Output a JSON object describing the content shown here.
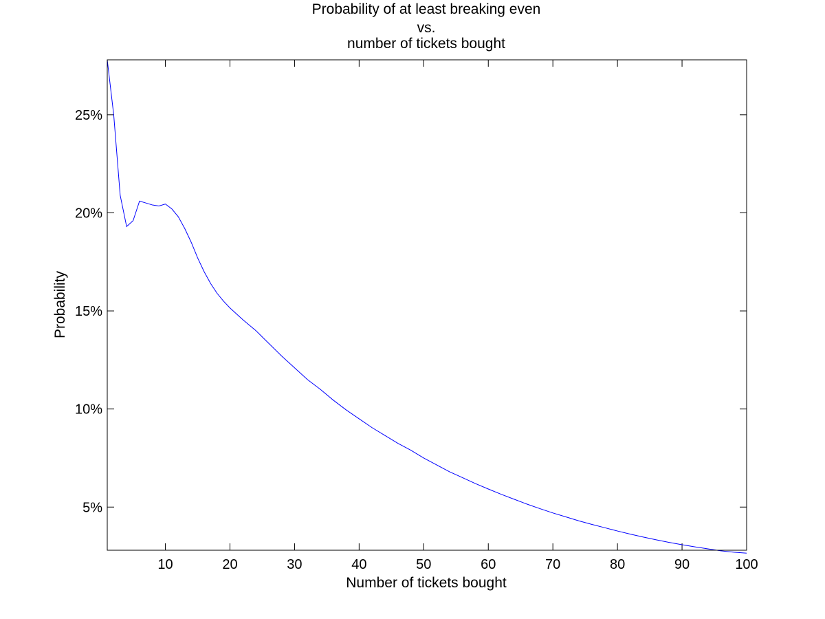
{
  "chart_data": {
    "type": "line",
    "title": [
      "Probability of at least breaking even",
      "vs.",
      "number of tickets bought"
    ],
    "xlabel": "Number of tickets bought",
    "ylabel": "Probability",
    "xlim": [
      1,
      100
    ],
    "ylim": [
      2.8,
      27.8
    ],
    "x_ticks": [
      10,
      20,
      30,
      40,
      50,
      60,
      70,
      80,
      90,
      100
    ],
    "x_tick_labels": [
      "10",
      "20",
      "30",
      "40",
      "50",
      "60",
      "70",
      "80",
      "90",
      "100"
    ],
    "y_ticks": [
      5,
      10,
      15,
      20,
      25
    ],
    "y_tick_labels": [
      "5%",
      "10%",
      "15%",
      "20%",
      "25%"
    ],
    "grid": false,
    "legend": "none",
    "series": [
      {
        "color": "#0000ff",
        "points": [
          [
            1,
            27.8
          ],
          [
            2,
            25.0
          ],
          [
            3,
            20.9
          ],
          [
            4,
            19.3
          ],
          [
            5,
            19.6
          ],
          [
            6,
            20.6
          ],
          [
            7,
            20.5
          ],
          [
            8,
            20.4
          ],
          [
            9,
            20.35
          ],
          [
            10,
            20.45
          ],
          [
            11,
            20.2
          ],
          [
            12,
            19.8
          ],
          [
            13,
            19.2
          ],
          [
            14,
            18.5
          ],
          [
            15,
            17.7
          ],
          [
            16,
            17.0
          ],
          [
            17,
            16.4
          ],
          [
            18,
            15.9
          ],
          [
            19,
            15.5
          ],
          [
            20,
            15.15
          ],
          [
            22,
            14.55
          ],
          [
            24,
            14.0
          ],
          [
            26,
            13.35
          ],
          [
            28,
            12.7
          ],
          [
            30,
            12.1
          ],
          [
            32,
            11.5
          ],
          [
            34,
            11.0
          ],
          [
            36,
            10.45
          ],
          [
            38,
            9.95
          ],
          [
            40,
            9.5
          ],
          [
            42,
            9.05
          ],
          [
            44,
            8.65
          ],
          [
            46,
            8.25
          ],
          [
            48,
            7.9
          ],
          [
            50,
            7.5
          ],
          [
            52,
            7.15
          ],
          [
            54,
            6.8
          ],
          [
            56,
            6.5
          ],
          [
            58,
            6.2
          ],
          [
            60,
            5.92
          ],
          [
            62,
            5.65
          ],
          [
            64,
            5.4
          ],
          [
            66,
            5.15
          ],
          [
            68,
            4.92
          ],
          [
            70,
            4.7
          ],
          [
            72,
            4.5
          ],
          [
            74,
            4.3
          ],
          [
            76,
            4.12
          ],
          [
            78,
            3.95
          ],
          [
            80,
            3.78
          ],
          [
            82,
            3.62
          ],
          [
            84,
            3.47
          ],
          [
            86,
            3.33
          ],
          [
            88,
            3.2
          ],
          [
            90,
            3.08
          ],
          [
            92,
            2.97
          ],
          [
            94,
            2.87
          ],
          [
            96,
            2.77
          ],
          [
            98,
            2.7
          ],
          [
            100,
            2.65
          ]
        ]
      }
    ]
  }
}
